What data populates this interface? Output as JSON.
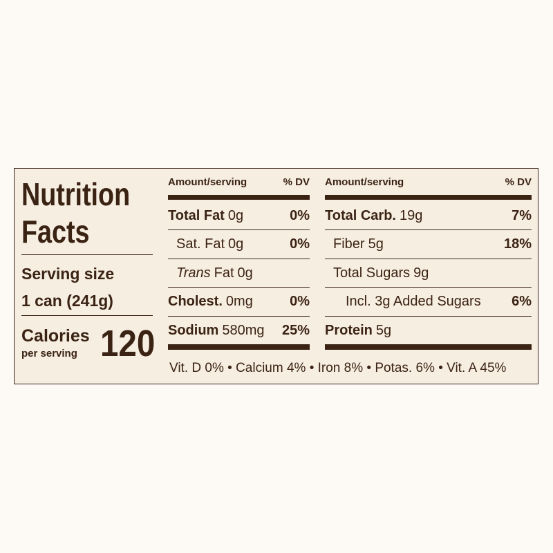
{
  "title": "Nutrition Facts",
  "serving": {
    "label": "Serving size",
    "value": "1 can (241g)"
  },
  "calories": {
    "label": "Calories",
    "sublabel": "per serving",
    "value": "120"
  },
  "left": {
    "header": {
      "amount": "Amount/serving",
      "dv": "% DV"
    },
    "rows": [
      {
        "name": "Total Fat",
        "amount": "0g",
        "dv": "0%",
        "style": "bold"
      },
      {
        "name": "Sat. Fat",
        "amount": "0g",
        "dv": "0%",
        "style": "indent"
      },
      {
        "name_italic": "Trans",
        "name": "Fat",
        "amount": "0g",
        "style": "indent"
      },
      {
        "name": "Cholest.",
        "amount": "0mg",
        "dv": "0%",
        "style": "bold"
      },
      {
        "name": "Sodium",
        "amount": "580mg",
        "dv": "25%",
        "style": "bold"
      }
    ]
  },
  "right": {
    "header": {
      "amount": "Amount/serving",
      "dv": "% DV"
    },
    "rows": [
      {
        "name": "Total Carb.",
        "amount": "19g",
        "dv": "7%",
        "style": "bold"
      },
      {
        "name": "Fiber",
        "amount": "5g",
        "dv": "18%",
        "style": "indent"
      },
      {
        "name": "Total Sugars",
        "amount": "9g",
        "style": "indent"
      },
      {
        "name": "Incl. 3g Added Sugars",
        "dv": "6%",
        "style": "indent2"
      },
      {
        "name": "Protein",
        "amount": "5g",
        "style": "bold"
      }
    ]
  },
  "footer": "Vit. D 0% • Calcium 4% • Iron 8% • Potas. 6% • Vit. A 45%"
}
